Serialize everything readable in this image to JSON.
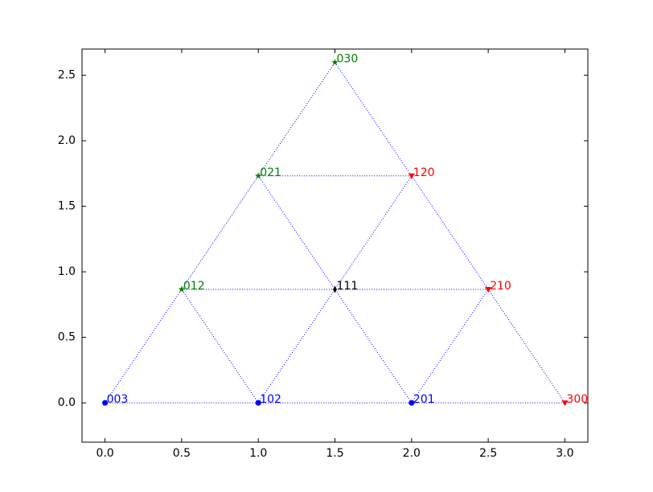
{
  "chart_data": {
    "type": "scatter",
    "xlim": [
      -0.15,
      3.15
    ],
    "ylim": [
      -0.3,
      2.7
    ],
    "xticks": [
      {
        "value": 0,
        "label": "0.0"
      },
      {
        "value": 0.5,
        "label": "0.5"
      },
      {
        "value": 1,
        "label": "1.0"
      },
      {
        "value": 1.5,
        "label": "1.5"
      },
      {
        "value": 2,
        "label": "2.0"
      },
      {
        "value": 2.5,
        "label": "2.5"
      },
      {
        "value": 3,
        "label": "3.0"
      }
    ],
    "yticks": [
      {
        "value": 0,
        "label": "0.0"
      },
      {
        "value": 0.5,
        "label": "0.5"
      },
      {
        "value": 1,
        "label": "1.0"
      },
      {
        "value": 1.5,
        "label": "1.5"
      },
      {
        "value": 2,
        "label": "2.0"
      },
      {
        "value": 2.5,
        "label": "2.5"
      }
    ],
    "edges": {
      "style": "dotted",
      "color": "blue"
    },
    "series": [
      {
        "color": "blue",
        "marker": "circle",
        "x": [
          0,
          1,
          2
        ],
        "y": [
          0,
          0,
          0
        ],
        "labels": [
          "003",
          "102",
          "201"
        ]
      },
      {
        "color": "green",
        "marker": "star",
        "x": [
          0.5,
          1,
          1.5
        ],
        "y": [
          0.866,
          1.732,
          2.598
        ],
        "labels": [
          "012",
          "021",
          "030"
        ]
      },
      {
        "color": "red",
        "marker": "triangle-down",
        "x": [
          2,
          2.5,
          3
        ],
        "y": [
          1.732,
          0.866,
          0
        ],
        "labels": [
          "120",
          "210",
          "300"
        ]
      },
      {
        "color": "black",
        "marker": "diamond",
        "x": [
          1.5
        ],
        "y": [
          0.866
        ],
        "labels": [
          "111"
        ]
      }
    ]
  }
}
